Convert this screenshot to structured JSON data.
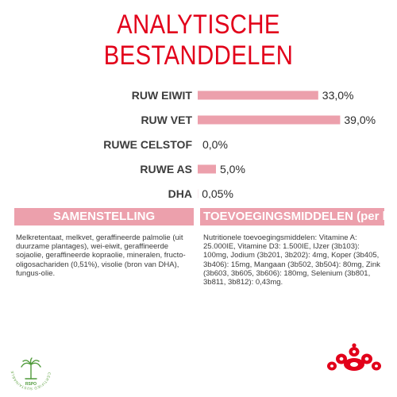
{
  "header": {
    "title": "ANALYTISCHE BESTANDDELEN"
  },
  "chart_data": {
    "type": "bar",
    "orientation": "horizontal",
    "categories": [
      "RUW EIWIT",
      "RUW VET",
      "RUWE CELSTOF",
      "RUWE AS",
      "DHA"
    ],
    "values": [
      33.0,
      39.0,
      0.0,
      5.0,
      0.05
    ],
    "value_labels": [
      "33,0%",
      "39,0%",
      "0,0%",
      "5,0%",
      "0,05%"
    ],
    "xlim": [
      0,
      45
    ],
    "grid": false,
    "bar_color": "#eca0ac"
  },
  "sections": {
    "left": {
      "heading": "SAMENSTELLING",
      "text": "Melkretentaat, melkvet, geraffineerde palmolie (uit duurzame plantages), wei-eiwit, geraffineerde sojaolie, geraffineerde kopraolie, mineralen, fructo-oligosachariden (0,51%), visolie (bron van DHA), fungus-olie."
    },
    "right": {
      "heading": "TOEVOEGINGSMIDDELEN (per kg)",
      "text": "Nutritionele toevoegingsmiddelen: Vitamine A: 25.000IE, Vitamine D3: 1.500IE, IJzer (3b103): 100mg, Jodium (3b201, 3b202): 4mg, Koper (3b405, 3b406): 15mg, Mangaan (3b502, 3b504): 80mg, Zink (3b603, 3b605, 3b606): 180mg, Selenium (3b801, 3b811, 3b812): 0,43mg."
    }
  },
  "badge": {
    "ring_text": "CERTIFIED SUSTAINABLE PALM OIL",
    "brand": "RSPO",
    "icon": "palm-tree-icon"
  },
  "logo": {
    "icon": "royal-canin-crown-icon",
    "color": "#e2001a"
  }
}
